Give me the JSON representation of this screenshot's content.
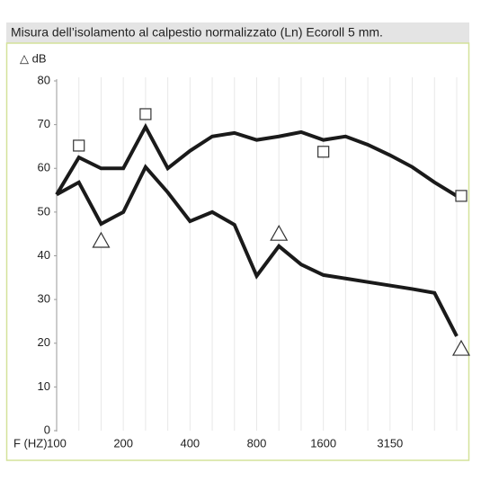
{
  "chart_data": {
    "type": "line",
    "title": "Misura dell’isolamento al calpestio normalizzato (Ln) Ecoroll 5 mm.",
    "y_label": "△ dB",
    "x_label": "F (HZ)",
    "categories": [
      "100",
      null,
      null,
      "200",
      null,
      null,
      "400",
      null,
      null,
      "800",
      null,
      null,
      "1600",
      null,
      null,
      "3150",
      null,
      null,
      null
    ],
    "series": [
      {
        "color": "#1a1a1a",
        "values": [
          54,
          62.5,
          60,
          60,
          69.5,
          60,
          64,
          67.3,
          68.1,
          66.5,
          67.3,
          68.3,
          66.5,
          67.3,
          65.4,
          63,
          60.3,
          56.8,
          53.7
        ]
      },
      {
        "color": "#1a1a1a",
        "values": [
          54,
          56.8,
          47.3,
          50,
          60.3,
          54.5,
          47.9,
          50,
          47.1,
          35.4,
          42.2,
          38,
          35.6,
          34.8,
          34,
          33.2,
          32.4,
          31.5,
          21.6
        ]
      },
      {
        "marker": "square",
        "color": "#333333",
        "values": [
          null,
          65.2,
          null,
          null,
          72.4,
          null,
          null,
          null,
          null,
          null,
          null,
          null,
          63.8,
          null,
          null,
          null,
          null,
          null,
          53.7
        ]
      },
      {
        "marker": "triangle",
        "color": "#333333",
        "values": [
          null,
          null,
          43.4,
          null,
          null,
          null,
          null,
          null,
          null,
          null,
          45,
          null,
          null,
          null,
          null,
          null,
          null,
          null,
          18.7
        ]
      }
    ],
    "ylim": [
      0,
      80
    ],
    "yticks": [
      0,
      10,
      20,
      30,
      40,
      50,
      60,
      70,
      80
    ],
    "grid": "x"
  }
}
